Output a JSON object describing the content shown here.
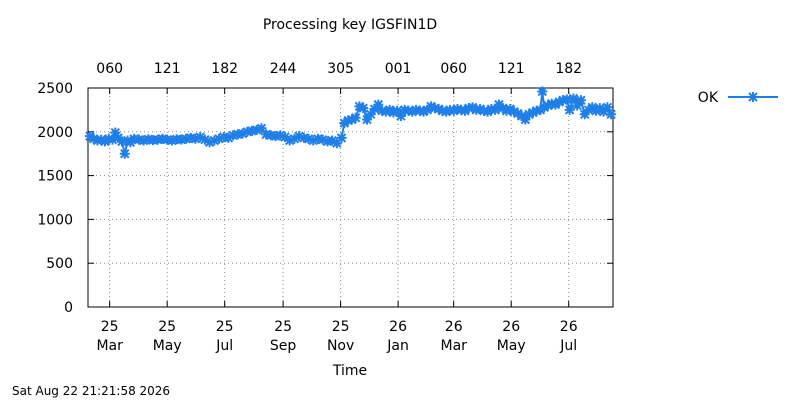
{
  "timestamp": "Sat Aug 22 21:21:58 2026",
  "chart_data": {
    "type": "line",
    "title": "Processing key IGSFIN1D",
    "xlabel": "Time",
    "ylabel": "",
    "ylim": [
      0,
      2500
    ],
    "xlim": [
      "2025-02-06",
      "2026-08-17"
    ],
    "yticks": [
      0,
      500,
      1000,
      1500,
      2000,
      2500
    ],
    "grid": true,
    "legend": "right",
    "x_ticks_bottom": [
      {
        "date": "2025-03-01",
        "label": [
          "25",
          "Mar"
        ]
      },
      {
        "date": "2025-05-01",
        "label": [
          "25",
          "May"
        ]
      },
      {
        "date": "2025-07-01",
        "label": [
          "25",
          "Jul"
        ]
      },
      {
        "date": "2025-09-01",
        "label": [
          "25",
          "Sep"
        ]
      },
      {
        "date": "2025-11-01",
        "label": [
          "25",
          "Nov"
        ]
      },
      {
        "date": "2026-01-01",
        "label": [
          "26",
          "Jan"
        ]
      },
      {
        "date": "2026-03-01",
        "label": [
          "26",
          "Mar"
        ]
      },
      {
        "date": "2026-05-01",
        "label": [
          "26",
          "May"
        ]
      },
      {
        "date": "2026-07-01",
        "label": [
          "26",
          "Jul"
        ]
      }
    ],
    "x_ticks_top": [
      {
        "date": "2025-03-01",
        "label": "060"
      },
      {
        "date": "2025-05-01",
        "label": "121"
      },
      {
        "date": "2025-07-01",
        "label": "182"
      },
      {
        "date": "2025-09-01",
        "label": "244"
      },
      {
        "date": "2025-11-01",
        "label": "305"
      },
      {
        "date": "2026-01-01",
        "label": "001"
      },
      {
        "date": "2026-03-01",
        "label": "060"
      },
      {
        "date": "2026-05-01",
        "label": "121"
      },
      {
        "date": "2026-07-01",
        "label": "182"
      }
    ],
    "series": [
      {
        "name": "OK",
        "color": "#1f7fe8",
        "points": [
          [
            "2025-02-08",
            1950
          ],
          [
            "2025-02-12",
            1920
          ],
          [
            "2025-02-16",
            1900
          ],
          [
            "2025-02-20",
            1910
          ],
          [
            "2025-02-24",
            1890
          ],
          [
            "2025-02-28",
            1920
          ],
          [
            "2025-03-04",
            1910
          ],
          [
            "2025-03-07",
            1990
          ],
          [
            "2025-03-10",
            1930
          ],
          [
            "2025-03-14",
            1890
          ],
          [
            "2025-03-17",
            1750
          ],
          [
            "2025-03-20",
            1900
          ],
          [
            "2025-03-23",
            1880
          ],
          [
            "2025-03-27",
            1920
          ],
          [
            "2025-04-01",
            1910
          ],
          [
            "2025-04-06",
            1900
          ],
          [
            "2025-04-11",
            1915
          ],
          [
            "2025-04-16",
            1905
          ],
          [
            "2025-04-21",
            1910
          ],
          [
            "2025-04-26",
            1920
          ],
          [
            "2025-05-01",
            1910
          ],
          [
            "2025-05-06",
            1900
          ],
          [
            "2025-05-11",
            1915
          ],
          [
            "2025-05-16",
            1910
          ],
          [
            "2025-05-21",
            1920
          ],
          [
            "2025-05-26",
            1930
          ],
          [
            "2025-05-31",
            1920
          ],
          [
            "2025-06-05",
            1940
          ],
          [
            "2025-06-10",
            1910
          ],
          [
            "2025-06-15",
            1880
          ],
          [
            "2025-06-20",
            1900
          ],
          [
            "2025-06-25",
            1920
          ],
          [
            "2025-06-30",
            1940
          ],
          [
            "2025-07-05",
            1930
          ],
          [
            "2025-07-10",
            1960
          ],
          [
            "2025-07-15",
            1970
          ],
          [
            "2025-07-20",
            1980
          ],
          [
            "2025-07-25",
            2000
          ],
          [
            "2025-07-30",
            2010
          ],
          [
            "2025-08-04",
            2020
          ],
          [
            "2025-08-09",
            2040
          ],
          [
            "2025-08-14",
            1970
          ],
          [
            "2025-08-19",
            1960
          ],
          [
            "2025-08-24",
            1950
          ],
          [
            "2025-08-29",
            1960
          ],
          [
            "2025-09-03",
            1940
          ],
          [
            "2025-09-08",
            1900
          ],
          [
            "2025-09-13",
            1920
          ],
          [
            "2025-09-18",
            1950
          ],
          [
            "2025-09-23",
            1930
          ],
          [
            "2025-09-28",
            1920
          ],
          [
            "2025-10-03",
            1900
          ],
          [
            "2025-10-08",
            1920
          ],
          [
            "2025-10-13",
            1910
          ],
          [
            "2025-10-18",
            1890
          ],
          [
            "2025-10-23",
            1900
          ],
          [
            "2025-10-28",
            1870
          ],
          [
            "2025-11-02",
            1930
          ],
          [
            "2025-11-05",
            2100
          ],
          [
            "2025-11-09",
            2130
          ],
          [
            "2025-11-13",
            2140
          ],
          [
            "2025-11-17",
            2160
          ],
          [
            "2025-11-21",
            2290
          ],
          [
            "2025-11-25",
            2270
          ],
          [
            "2025-11-29",
            2140
          ],
          [
            "2025-12-03",
            2200
          ],
          [
            "2025-12-07",
            2260
          ],
          [
            "2025-12-11",
            2310
          ],
          [
            "2025-12-15",
            2240
          ],
          [
            "2025-12-19",
            2230
          ],
          [
            "2025-12-23",
            2250
          ],
          [
            "2025-12-27",
            2220
          ],
          [
            "2025-12-31",
            2240
          ],
          [
            "2026-01-04",
            2180
          ],
          [
            "2026-01-08",
            2250
          ],
          [
            "2026-01-12",
            2240
          ],
          [
            "2026-01-16",
            2230
          ],
          [
            "2026-01-20",
            2250
          ],
          [
            "2026-01-24",
            2240
          ],
          [
            "2026-01-28",
            2230
          ],
          [
            "2026-02-01",
            2250
          ],
          [
            "2026-02-05",
            2290
          ],
          [
            "2026-02-09",
            2270
          ],
          [
            "2026-02-13",
            2260
          ],
          [
            "2026-02-17",
            2240
          ],
          [
            "2026-02-21",
            2230
          ],
          [
            "2026-02-25",
            2250
          ],
          [
            "2026-03-01",
            2240
          ],
          [
            "2026-03-05",
            2260
          ],
          [
            "2026-03-09",
            2250
          ],
          [
            "2026-03-13",
            2240
          ],
          [
            "2026-03-17",
            2270
          ],
          [
            "2026-03-21",
            2280
          ],
          [
            "2026-03-25",
            2250
          ],
          [
            "2026-03-29",
            2260
          ],
          [
            "2026-04-02",
            2240
          ],
          [
            "2026-04-06",
            2230
          ],
          [
            "2026-04-10",
            2260
          ],
          [
            "2026-04-14",
            2250
          ],
          [
            "2026-04-18",
            2310
          ],
          [
            "2026-04-22",
            2270
          ],
          [
            "2026-04-26",
            2240
          ],
          [
            "2026-04-30",
            2260
          ],
          [
            "2026-05-04",
            2230
          ],
          [
            "2026-05-08",
            2210
          ],
          [
            "2026-05-12",
            2180
          ],
          [
            "2026-05-16",
            2140
          ],
          [
            "2026-05-20",
            2200
          ],
          [
            "2026-05-24",
            2220
          ],
          [
            "2026-05-28",
            2240
          ],
          [
            "2026-06-01",
            2250
          ],
          [
            "2026-06-03",
            2460
          ],
          [
            "2026-06-05",
            2280
          ],
          [
            "2026-06-09",
            2300
          ],
          [
            "2026-06-13",
            2320
          ],
          [
            "2026-06-17",
            2310
          ],
          [
            "2026-06-21",
            2340
          ],
          [
            "2026-06-25",
            2360
          ],
          [
            "2026-06-29",
            2370
          ],
          [
            "2026-07-02",
            2250
          ],
          [
            "2026-07-06",
            2380
          ],
          [
            "2026-07-10",
            2300
          ],
          [
            "2026-07-14",
            2360
          ],
          [
            "2026-07-18",
            2200
          ],
          [
            "2026-07-22",
            2250
          ],
          [
            "2026-07-26",
            2280
          ],
          [
            "2026-07-30",
            2240
          ],
          [
            "2026-08-03",
            2270
          ],
          [
            "2026-08-07",
            2230
          ],
          [
            "2026-08-11",
            2280
          ],
          [
            "2026-08-15",
            2200
          ]
        ]
      }
    ]
  }
}
